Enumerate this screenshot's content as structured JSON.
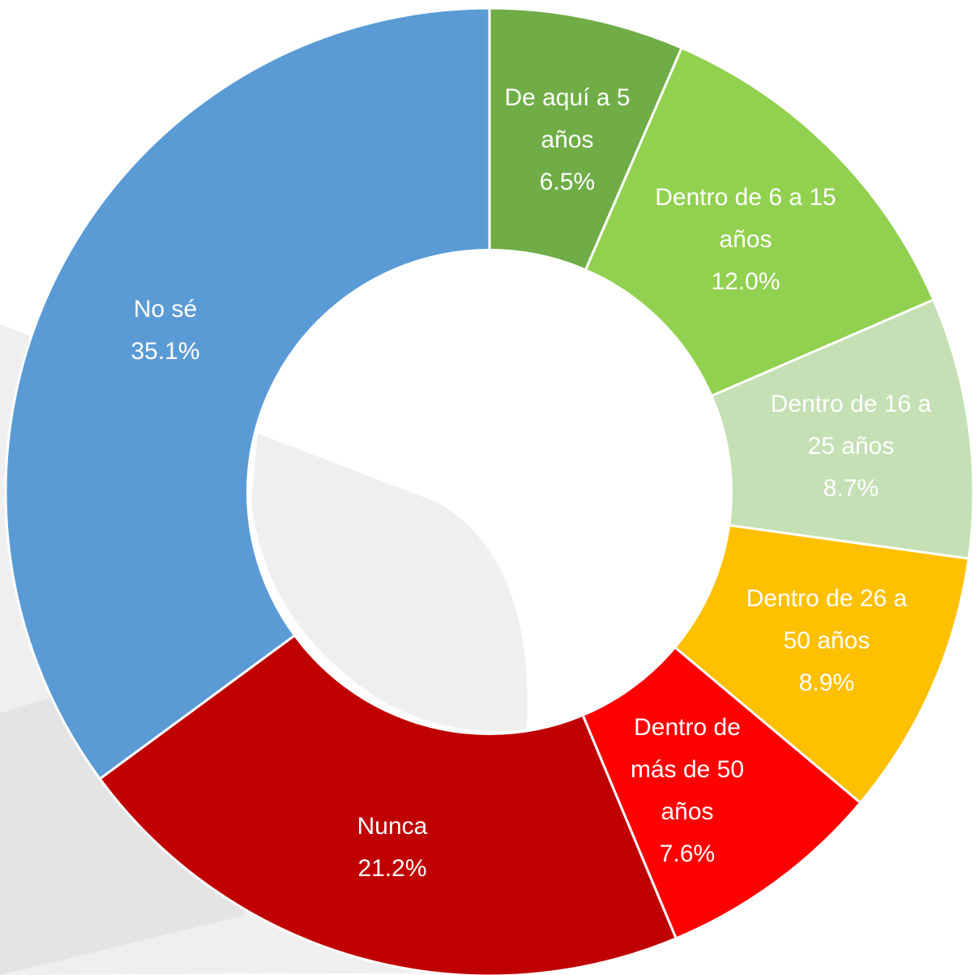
{
  "chart_data": {
    "type": "donut",
    "categories": [
      "De aquí a 5 años",
      "Dentro de 6 a 15 años",
      "Dentro de 16 a 25 años",
      "Dentro de 26 a 50 años",
      "Dentro de más de 50 años",
      "Nunca",
      "No sé"
    ],
    "values": [
      6.5,
      12.0,
      8.7,
      8.9,
      7.6,
      21.2,
      35.1
    ],
    "value_labels": [
      "6.5%",
      "12.0%",
      "8.7%",
      "8.9%",
      "7.6%",
      "21.2%",
      "35.1%"
    ],
    "colors": [
      "#70ad47",
      "#92d050",
      "#c5e0b4",
      "#ffc000",
      "#ff0000",
      "#c00000",
      "#5b9bd5"
    ]
  }
}
